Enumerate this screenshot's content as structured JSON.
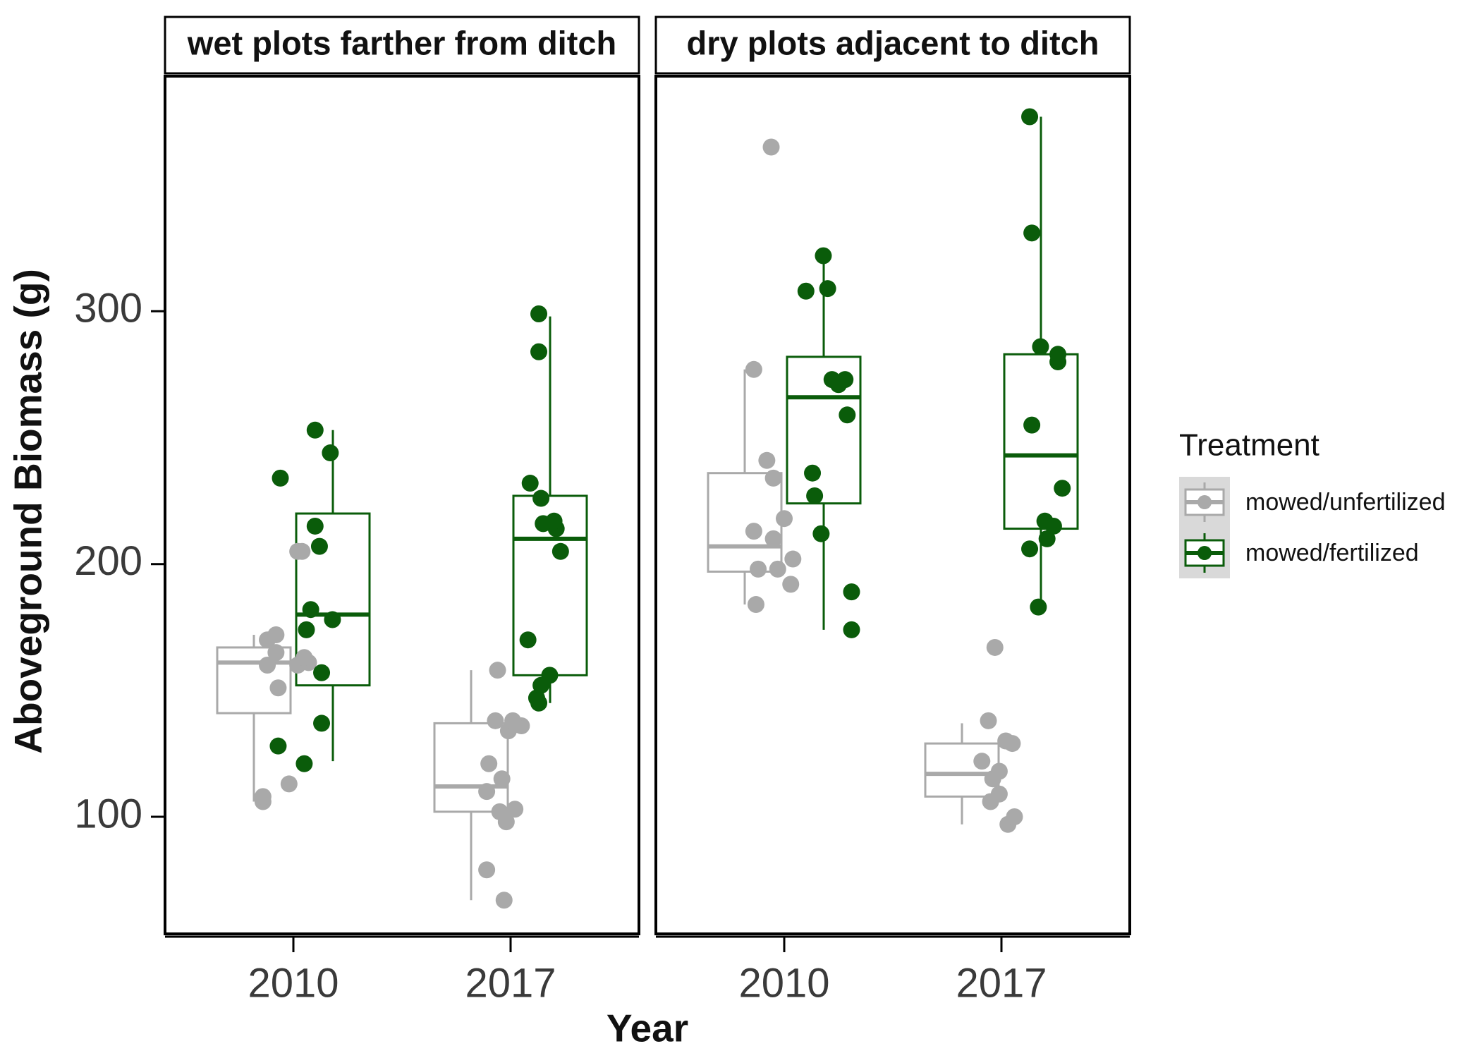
{
  "chart_data": {
    "type": "box",
    "facets": [
      "wet plots farther from ditch",
      "dry plots adjacent to ditch"
    ],
    "categories": [
      "2010",
      "2017"
    ],
    "xlabel": "Year",
    "ylabel": "Aboveground Biomass (g)",
    "yticks": [
      100,
      200,
      300
    ],
    "ylim": [
      53,
      393
    ],
    "legend": {
      "title": "Treatment",
      "position": "right",
      "entries": [
        {
          "name": "mowed/unfertilized",
          "color": "#a9a9a9"
        },
        {
          "name": "mowed/fertilized",
          "color": "#0a5c0a"
        }
      ]
    },
    "series": [
      {
        "name": "mowed/unfertilized",
        "color": "#a9a9a9",
        "boxes": [
          {
            "facet": 0,
            "category": "2010",
            "whisker_low": 106,
            "q1": 141,
            "median": 161,
            "q3": 167,
            "whisker_high": 172,
            "points": [
              [
                -0.14,
                106
              ],
              [
                -0.14,
                108
              ],
              [
                -0.02,
                113
              ],
              [
                -0.07,
                151
              ],
              [
                -0.12,
                160
              ],
              [
                0.02,
                160
              ],
              [
                0.07,
                161
              ],
              [
                -0.08,
                165
              ],
              [
                0.05,
                163
              ],
              [
                -0.12,
                170
              ],
              [
                -0.08,
                172
              ],
              [
                0.02,
                205
              ],
              [
                0.04,
                205
              ]
            ]
          },
          {
            "facet": 0,
            "category": "2017",
            "whisker_low": 67,
            "q1": 102,
            "median": 112,
            "q3": 137,
            "whisker_high": 158,
            "points": [
              [
                -0.03,
                67
              ],
              [
                -0.11,
                79
              ],
              [
                -0.02,
                98
              ],
              [
                -0.05,
                102
              ],
              [
                0.02,
                103
              ],
              [
                -0.11,
                110
              ],
              [
                -0.04,
                115
              ],
              [
                -0.1,
                121
              ],
              [
                -0.01,
                134
              ],
              [
                0.05,
                136
              ],
              [
                -0.07,
                138
              ],
              [
                0.01,
                138
              ],
              [
                -0.06,
                158
              ]
            ]
          },
          {
            "facet": 1,
            "category": "2010",
            "whisker_low": 184,
            "q1": 197,
            "median": 207,
            "q3": 236,
            "whisker_high": 277,
            "points": [
              [
                -0.13,
                184
              ],
              [
                0.03,
                192
              ],
              [
                -0.12,
                198
              ],
              [
                -0.03,
                198
              ],
              [
                0.04,
                202
              ],
              [
                -0.05,
                210
              ],
              [
                -0.14,
                213
              ],
              [
                0.0,
                218
              ],
              [
                -0.05,
                234
              ],
              [
                -0.08,
                241
              ],
              [
                -0.14,
                277
              ],
              [
                -0.06,
                365
              ]
            ]
          },
          {
            "facet": 1,
            "category": "2017",
            "whisker_low": 97,
            "q1": 108,
            "median": 117,
            "q3": 129,
            "whisker_high": 137,
            "points": [
              [
                0.03,
                97
              ],
              [
                0.06,
                100
              ],
              [
                -0.05,
                106
              ],
              [
                -0.01,
                109
              ],
              [
                -0.04,
                115
              ],
              [
                -0.09,
                122
              ],
              [
                -0.01,
                118
              ],
              [
                0.02,
                130
              ],
              [
                0.05,
                129
              ],
              [
                -0.06,
                138
              ],
              [
                -0.03,
                167
              ]
            ]
          }
        ]
      },
      {
        "name": "mowed/fertilized",
        "color": "#0a5c0a",
        "boxes": [
          {
            "facet": 0,
            "category": "2010",
            "whisker_low": 122,
            "q1": 152,
            "median": 180,
            "q3": 220,
            "whisker_high": 253,
            "points": [
              [
                0.05,
                121
              ],
              [
                -0.07,
                128
              ],
              [
                0.13,
                137
              ],
              [
                0.13,
                157
              ],
              [
                0.06,
                174
              ],
              [
                0.18,
                178
              ],
              [
                0.08,
                182
              ],
              [
                0.12,
                207
              ],
              [
                0.1,
                215
              ],
              [
                -0.06,
                234
              ],
              [
                0.17,
                244
              ],
              [
                0.1,
                253
              ]
            ]
          },
          {
            "facet": 0,
            "category": "2017",
            "whisker_low": 145,
            "q1": 156,
            "median": 210,
            "q3": 227,
            "whisker_high": 298,
            "points": [
              [
                0.13,
                145
              ],
              [
                0.12,
                147
              ],
              [
                0.14,
                152
              ],
              [
                0.18,
                156
              ],
              [
                0.08,
                170
              ],
              [
                0.23,
                205
              ],
              [
                0.21,
                214
              ],
              [
                0.15,
                216
              ],
              [
                0.2,
                217
              ],
              [
                0.14,
                226
              ],
              [
                0.09,
                232
              ],
              [
                0.13,
                284
              ],
              [
                0.13,
                299
              ]
            ]
          },
          {
            "facet": 1,
            "category": "2010",
            "whisker_low": 174,
            "q1": 224,
            "median": 266,
            "q3": 282,
            "whisker_high": 323,
            "points": [
              [
                0.31,
                174
              ],
              [
                0.31,
                189
              ],
              [
                0.17,
                212
              ],
              [
                0.14,
                227
              ],
              [
                0.13,
                236
              ],
              [
                0.29,
                259
              ],
              [
                0.25,
                271
              ],
              [
                0.28,
                273
              ],
              [
                0.22,
                273
              ],
              [
                0.2,
                309
              ],
              [
                0.1,
                308
              ],
              [
                0.18,
                322
              ]
            ]
          },
          {
            "facet": 1,
            "category": "2017",
            "whisker_low": 183,
            "q1": 214,
            "median": 243,
            "q3": 283,
            "whisker_high": 377,
            "points": [
              [
                0.17,
                183
              ],
              [
                0.13,
                206
              ],
              [
                0.21,
                210
              ],
              [
                0.2,
                217
              ],
              [
                0.24,
                215
              ],
              [
                0.28,
                230
              ],
              [
                0.14,
                255
              ],
              [
                0.26,
                280
              ],
              [
                0.26,
                283
              ],
              [
                0.18,
                286
              ],
              [
                0.14,
                331
              ],
              [
                0.13,
                377
              ]
            ]
          }
        ]
      }
    ]
  }
}
